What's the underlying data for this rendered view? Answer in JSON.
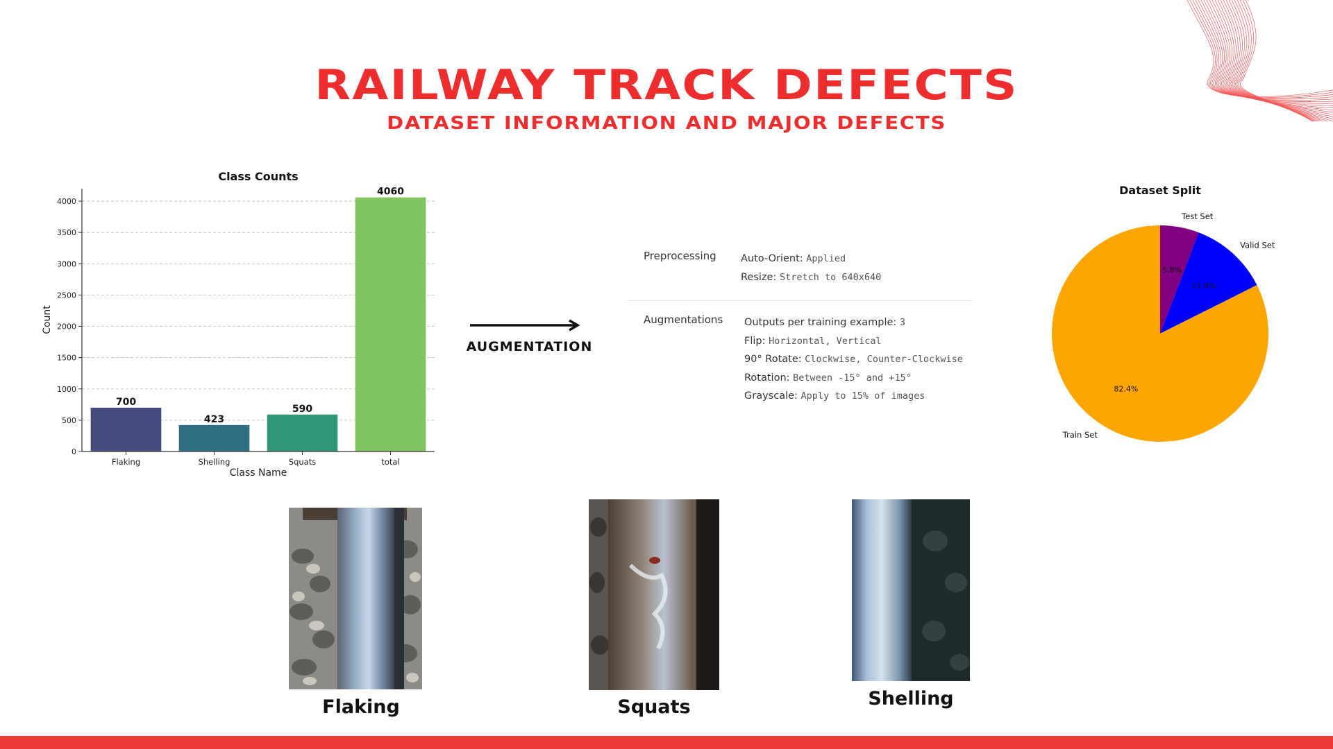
{
  "header": {
    "title": "RAILWAY TRACK DEFECTS",
    "subtitle": "DATASET INFORMATION AND MAJOR DEFECTS"
  },
  "colors": {
    "accent": "#ee2e2e",
    "bottom_bar": "#f03a3a"
  },
  "chart_data": [
    {
      "type": "bar",
      "title": "Class Counts",
      "xlabel": "Class Name",
      "ylabel": "Count",
      "categories": [
        "Flaking",
        "Shelling",
        "Squats",
        "total"
      ],
      "values": [
        700,
        423,
        590,
        4060
      ],
      "value_labels": [
        "700",
        "423",
        "590",
        "4060"
      ],
      "colors": [
        "#46497c",
        "#2f6f84",
        "#2f9679",
        "#82c45f"
      ],
      "ylim": [
        0,
        4200
      ],
      "yticks": [
        0,
        500,
        1000,
        1500,
        2000,
        2500,
        3000,
        3500,
        4000
      ],
      "grid": true,
      "grid_axis": "y"
    },
    {
      "type": "pie",
      "title": "Dataset Split",
      "labels": [
        "Test Set",
        "Valid Set",
        "Train Set"
      ],
      "values": [
        5.8,
        11.8,
        82.4
      ],
      "pct_labels": [
        "5.8%",
        "11.8%",
        "82.4%"
      ],
      "colors": [
        "#800080",
        "#0000ff",
        "#ffa500"
      ]
    }
  ],
  "transition": {
    "label": "AUGMENTATION"
  },
  "preprocessing": {
    "heading": "Preprocessing",
    "items": [
      {
        "key": "Auto-Orient:",
        "value": "Applied"
      },
      {
        "key": "Resize:",
        "value": "Stretch to 640x640"
      }
    ]
  },
  "augmentations": {
    "heading": "Augmentations",
    "items": [
      {
        "key": "Outputs per training example:",
        "value": "3"
      },
      {
        "key": "Flip:",
        "value": "Horizontal, Vertical"
      },
      {
        "key": "90° Rotate:",
        "value": "Clockwise, Counter-Clockwise"
      },
      {
        "key": "Rotation:",
        "value": "Between -15° and +15°"
      },
      {
        "key": "Grayscale:",
        "value": "Apply to 15% of images"
      }
    ]
  },
  "samples": [
    {
      "caption": "Flaking"
    },
    {
      "caption": "Squats"
    },
    {
      "caption": "Shelling"
    }
  ]
}
